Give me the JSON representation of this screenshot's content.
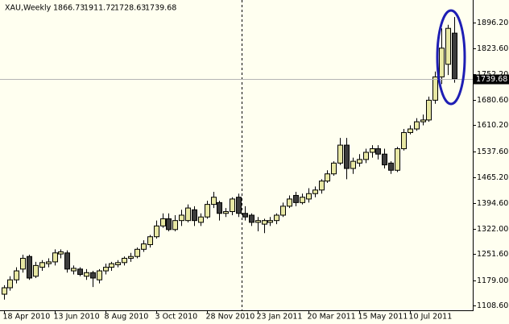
{
  "chart_data": {
    "type": "candlestick",
    "title": "XAU,Weekly",
    "categories": [
      "18 Apr 2010",
      null,
      null,
      null,
      null,
      null,
      null,
      null,
      "13 Jun 2010",
      null,
      null,
      null,
      null,
      null,
      null,
      null,
      "8 Aug 2010",
      null,
      null,
      null,
      null,
      null,
      null,
      null,
      "3 Oct 2010",
      null,
      null,
      null,
      null,
      null,
      null,
      null,
      "28 Nov 2010",
      null,
      null,
      null,
      null,
      null,
      null,
      null,
      "23 Jan 2011",
      null,
      null,
      null,
      null,
      null,
      null,
      null,
      "20 Mar 2011",
      null,
      null,
      null,
      null,
      null,
      null,
      null,
      "15 May 2011",
      null,
      null,
      null,
      null,
      null,
      null,
      null,
      "10 Jul 2011",
      null,
      null,
      null,
      null,
      null,
      null,
      null
    ],
    "open": [
      1140,
      1158,
      1180,
      1210,
      1245,
      1190,
      1215,
      1225,
      1230,
      1252,
      1255,
      1205,
      1210,
      1190,
      1200,
      1180,
      1205,
      1215,
      1222,
      1228,
      1240,
      1245,
      1265,
      1278,
      1300,
      1330,
      1350,
      1320,
      1345,
      1345,
      1375,
      1340,
      1355,
      1390,
      1395,
      1365,
      1370,
      1410,
      1365,
      1360,
      1340,
      1335,
      1340,
      1345,
      1360,
      1385,
      1415,
      1395,
      1405,
      1420,
      1430,
      1455,
      1475,
      1505,
      1555,
      1490,
      1505,
      1515,
      1535,
      1545,
      1530,
      1505,
      1485,
      1545,
      1590,
      1600,
      1620,
      1625,
      1680,
      1745,
      1780,
      1866.73
    ],
    "high": [
      1165,
      1190,
      1215,
      1250,
      1250,
      1230,
      1235,
      1240,
      1265,
      1265,
      1262,
      1220,
      1215,
      1210,
      1205,
      1210,
      1225,
      1230,
      1235,
      1245,
      1255,
      1270,
      1290,
      1305,
      1345,
      1365,
      1365,
      1360,
      1375,
      1390,
      1385,
      1365,
      1400,
      1425,
      1400,
      1380,
      1410,
      1420,
      1385,
      1365,
      1355,
      1350,
      1355,
      1365,
      1395,
      1415,
      1425,
      1420,
      1435,
      1440,
      1460,
      1485,
      1510,
      1575,
      1575,
      1520,
      1530,
      1545,
      1555,
      1555,
      1545,
      1510,
      1550,
      1600,
      1610,
      1630,
      1640,
      1690,
      1760,
      1880,
      1890,
      1911.72
    ],
    "low": [
      1125,
      1150,
      1170,
      1200,
      1180,
      1185,
      1205,
      1215,
      1220,
      1240,
      1200,
      1195,
      1190,
      1180,
      1160,
      1170,
      1195,
      1205,
      1215,
      1220,
      1230,
      1240,
      1258,
      1270,
      1295,
      1325,
      1315,
      1315,
      1330,
      1340,
      1330,
      1330,
      1350,
      1380,
      1345,
      1355,
      1360,
      1355,
      1345,
      1330,
      1315,
      1310,
      1330,
      1335,
      1355,
      1380,
      1385,
      1390,
      1395,
      1410,
      1420,
      1450,
      1470,
      1500,
      1460,
      1475,
      1495,
      1505,
      1520,
      1515,
      1490,
      1475,
      1480,
      1540,
      1585,
      1595,
      1610,
      1620,
      1670,
      1725,
      1750,
      1728.63
    ],
    "close": [
      1158,
      1180,
      1205,
      1240,
      1185,
      1220,
      1228,
      1230,
      1255,
      1258,
      1210,
      1212,
      1195,
      1200,
      1185,
      1205,
      1215,
      1225,
      1228,
      1240,
      1245,
      1265,
      1280,
      1300,
      1330,
      1350,
      1320,
      1345,
      1360,
      1380,
      1345,
      1355,
      1390,
      1410,
      1365,
      1370,
      1405,
      1365,
      1355,
      1340,
      1345,
      1345,
      1345,
      1360,
      1385,
      1405,
      1395,
      1410,
      1420,
      1430,
      1455,
      1475,
      1505,
      1555,
      1490,
      1510,
      1515,
      1535,
      1545,
      1530,
      1500,
      1485,
      1545,
      1590,
      1600,
      1620,
      1625,
      1680,
      1745,
      1825,
      1880,
      1739.68
    ],
    "up_color": "#e8e8a4",
    "down_color": "#3c3c3c",
    "ylim": [
      1095.2,
      1959
    ],
    "yticks": [
      {
        "value": 1108.6,
        "label": "1108.60"
      },
      {
        "value": 1179,
        "label": "1179.00"
      },
      {
        "value": 1251.6,
        "label": "1251.60"
      },
      {
        "value": 1322,
        "label": "1322.00"
      },
      {
        "value": 1394.6,
        "label": "1394.60"
      },
      {
        "value": 1465.2,
        "label": "1465.20"
      },
      {
        "value": 1537.6,
        "label": "1537.60"
      },
      {
        "value": 1610.2,
        "label": "1610.20"
      },
      {
        "value": 1680.6,
        "label": "1680.60"
      },
      {
        "value": 1752.2,
        "label": "1752.20"
      },
      {
        "value": 1823.6,
        "label": "1823.60"
      },
      {
        "value": 1896.2,
        "label": "1896.20"
      }
    ]
  }
}
